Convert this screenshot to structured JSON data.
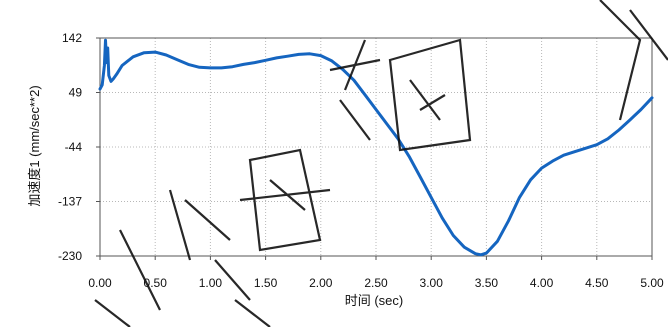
{
  "chart_data": {
    "type": "line",
    "xlabel": "时间 (sec)",
    "ylabel": "加速度1 (mm/sec**2)",
    "xlim": [
      0,
      5
    ],
    "ylim": [
      -230,
      142
    ],
    "x_ticks": [
      "0.00",
      "0.50",
      "1.00",
      "1.50",
      "2.00",
      "2.50",
      "3.00",
      "3.50",
      "4.00",
      "4.50",
      "5.00"
    ],
    "y_ticks": [
      "142",
      "49",
      "-44",
      "-137",
      "-230"
    ],
    "grid": true,
    "line_color": "#1565c0",
    "series": [
      {
        "x": [
          0.0,
          0.02,
          0.04,
          0.05,
          0.06,
          0.07,
          0.08,
          0.1,
          0.12,
          0.15,
          0.2,
          0.3,
          0.4,
          0.5,
          0.6,
          0.7,
          0.8,
          0.9,
          1.0,
          1.1,
          1.2,
          1.3,
          1.4,
          1.5,
          1.6,
          1.7,
          1.8,
          1.9,
          2.0,
          2.1,
          2.2,
          2.3,
          2.4,
          2.5,
          2.6,
          2.7,
          2.8,
          2.9,
          3.0,
          3.1,
          3.2,
          3.3,
          3.4,
          3.45,
          3.5,
          3.6,
          3.7,
          3.8,
          3.9,
          4.0,
          4.1,
          4.2,
          4.3,
          4.4,
          4.5,
          4.6,
          4.7,
          4.8,
          4.9,
          5.0
        ],
        "values": [
          55,
          62,
          95,
          138,
          100,
          125,
          78,
          68,
          72,
          80,
          95,
          110,
          117,
          118,
          113,
          105,
          97,
          92,
          91,
          91,
          93,
          97,
          100,
          104,
          108,
          111,
          114,
          115,
          112,
          103,
          88,
          70,
          45,
          20,
          -5,
          -30,
          -60,
          -95,
          -130,
          -165,
          -195,
          -215,
          -226,
          -228,
          -225,
          -205,
          -170,
          -130,
          -100,
          -80,
          -68,
          -58,
          -52,
          -46,
          -40,
          -30,
          -15,
          2,
          20,
          40
        ]
      }
    ]
  }
}
